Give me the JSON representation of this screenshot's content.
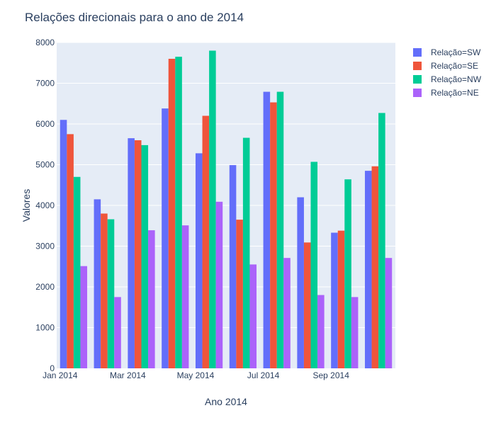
{
  "chart_data": {
    "type": "bar",
    "title": "Relações direcionais para o ano de 2014",
    "xlabel": "Ano 2014",
    "ylabel": "Valores",
    "ylim": [
      0,
      8000
    ],
    "y_ticks": [
      0,
      1000,
      2000,
      3000,
      4000,
      5000,
      6000,
      7000,
      8000
    ],
    "x_tick_labels": [
      {
        "label": "Jan 2014",
        "month_index": 0
      },
      {
        "label": "Mar 2014",
        "month_index": 2
      },
      {
        "label": "May 2014",
        "month_index": 4
      },
      {
        "label": "Jul 2014",
        "month_index": 6
      },
      {
        "label": "Sep 2014",
        "month_index": 8
      }
    ],
    "categories": [
      "2014-01",
      "2014-02",
      "2014-03",
      "2014-04",
      "2014-05",
      "2014-06",
      "2014-07",
      "2014-08",
      "2014-09",
      "2014-10"
    ],
    "series": [
      {
        "name": "Relação=SW",
        "color": "#636efa",
        "values": [
          6100,
          4150,
          5650,
          6380,
          5280,
          4990,
          6790,
          4200,
          3330,
          4850
        ]
      },
      {
        "name": "Relação=SE",
        "color": "#ef553b",
        "values": [
          5750,
          3800,
          5600,
          7600,
          6200,
          3650,
          6530,
          3090,
          3380,
          4960
        ]
      },
      {
        "name": "Relação=NW",
        "color": "#00cc96",
        "values": [
          4700,
          3660,
          5480,
          7650,
          7800,
          5660,
          6790,
          5070,
          4640,
          6270
        ]
      },
      {
        "name": "Relação=NE",
        "color": "#ab63fa",
        "values": [
          2510,
          1750,
          3390,
          3510,
          4090,
          2550,
          2710,
          1800,
          1750,
          2710
        ]
      }
    ],
    "grid": true,
    "legend_position": "top-right",
    "plot_background": "#e5ecf6",
    "grid_color": "#ffffff"
  }
}
